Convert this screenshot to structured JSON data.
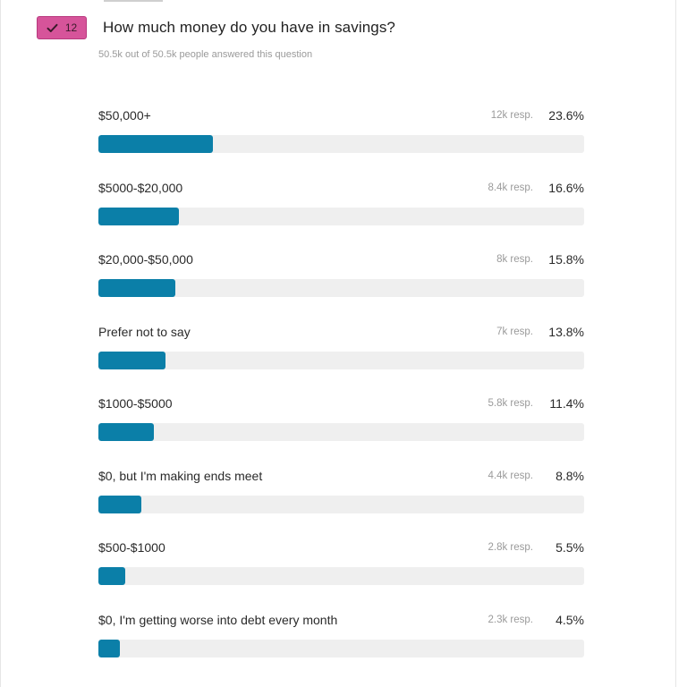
{
  "question": {
    "badge_count": "12",
    "badge_icon": "checkmark-icon",
    "title": "How much money do you have in savings?",
    "answered_text": "50.5k out of 50.5k people answered this question"
  },
  "colors": {
    "badge": "#d6549a",
    "bar_fill": "#0b7fa8",
    "bar_track": "#efefef"
  },
  "options": [
    {
      "label": "$50,000+",
      "responses": "12k resp.",
      "percent": "23.6%",
      "value": 23.6
    },
    {
      "label": "$5000-$20,000",
      "responses": "8.4k resp.",
      "percent": "16.6%",
      "value": 16.6
    },
    {
      "label": "$20,000-$50,000",
      "responses": "8k resp.",
      "percent": "15.8%",
      "value": 15.8
    },
    {
      "label": "Prefer not to say",
      "responses": "7k resp.",
      "percent": "13.8%",
      "value": 13.8
    },
    {
      "label": "$1000-$5000",
      "responses": "5.8k resp.",
      "percent": "11.4%",
      "value": 11.4
    },
    {
      "label": "$0, but I'm making ends meet",
      "responses": "4.4k resp.",
      "percent": "8.8%",
      "value": 8.8
    },
    {
      "label": "$500-$1000",
      "responses": "2.8k resp.",
      "percent": "5.5%",
      "value": 5.5
    },
    {
      "label": "$0, I'm getting worse into debt every month",
      "responses": "2.3k resp.",
      "percent": "4.5%",
      "value": 4.5
    }
  ]
}
